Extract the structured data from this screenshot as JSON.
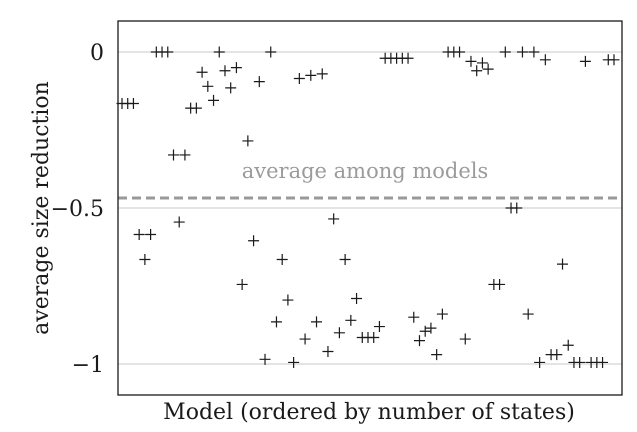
{
  "chart_data": {
    "type": "scatter",
    "xlabel": "Model (ordered by number of states)",
    "ylabel": "average size reduction",
    "ylim": [
      -1.1,
      0.1
    ],
    "yticks": [
      {
        "value": 0,
        "label": "0"
      },
      {
        "value": -0.5,
        "label": "−0.5"
      },
      {
        "value": -1,
        "label": "−1"
      }
    ],
    "grid": "horizontal",
    "marker": "+",
    "series": [
      {
        "points": [
          [
            1,
            -0.165
          ],
          [
            2,
            -0.165
          ],
          [
            3,
            -0.165
          ],
          [
            4,
            -0.585
          ],
          [
            5,
            -0.665
          ],
          [
            6,
            -0.585
          ],
          [
            7,
            0
          ],
          [
            8,
            0
          ],
          [
            9,
            0
          ],
          [
            10,
            -0.33
          ],
          [
            11,
            -0.545
          ],
          [
            12,
            -0.33
          ],
          [
            13,
            -0.18
          ],
          [
            14,
            -0.18
          ],
          [
            15,
            -0.065
          ],
          [
            16,
            -0.11
          ],
          [
            17,
            -0.155
          ],
          [
            18,
            0
          ],
          [
            19,
            -0.06
          ],
          [
            20,
            -0.115
          ],
          [
            21,
            -0.05
          ],
          [
            22,
            -0.745
          ],
          [
            23,
            -0.285
          ],
          [
            24,
            -0.605
          ],
          [
            25,
            -0.095
          ],
          [
            26,
            -0.985
          ],
          [
            27,
            0
          ],
          [
            28,
            -0.865
          ],
          [
            29,
            -0.665
          ],
          [
            30,
            -0.795
          ],
          [
            31,
            -0.995
          ],
          [
            32,
            -0.085
          ],
          [
            33,
            -0.92
          ],
          [
            34,
            -0.075
          ],
          [
            35,
            -0.865
          ],
          [
            36,
            -0.07
          ],
          [
            37,
            -0.96
          ],
          [
            38,
            -0.535
          ],
          [
            39,
            -0.9
          ],
          [
            40,
            -0.665
          ],
          [
            41,
            -0.86
          ],
          [
            42,
            -0.79
          ],
          [
            43,
            -0.915
          ],
          [
            44,
            -0.915
          ],
          [
            45,
            -0.915
          ],
          [
            46,
            -0.88
          ],
          [
            47,
            -0.02
          ],
          [
            48,
            -0.02
          ],
          [
            49,
            -0.02
          ],
          [
            50,
            -0.02
          ],
          [
            51,
            -0.02
          ],
          [
            52,
            -0.85
          ],
          [
            53,
            -0.925
          ],
          [
            54,
            -0.895
          ],
          [
            55,
            -0.885
          ],
          [
            56,
            -0.97
          ],
          [
            57,
            -0.84
          ],
          [
            58,
            0
          ],
          [
            59,
            0
          ],
          [
            60,
            0
          ],
          [
            61,
            -0.92
          ],
          [
            62,
            -0.03
          ],
          [
            63,
            -0.06
          ],
          [
            64,
            -0.035
          ],
          [
            65,
            -0.055
          ],
          [
            66,
            -0.745
          ],
          [
            67,
            -0.745
          ],
          [
            68,
            0
          ],
          [
            69,
            -0.5
          ],
          [
            70,
            -0.5
          ],
          [
            71,
            0
          ],
          [
            72,
            -0.84
          ],
          [
            73,
            0
          ],
          [
            74,
            -0.995
          ],
          [
            75,
            -0.025
          ],
          [
            76,
            -0.97
          ],
          [
            77,
            -0.97
          ],
          [
            78,
            -0.68
          ],
          [
            79,
            -0.94
          ],
          [
            80,
            -0.995
          ],
          [
            81,
            -0.995
          ],
          [
            82,
            -0.03
          ],
          [
            83,
            -0.995
          ],
          [
            84,
            -0.995
          ],
          [
            85,
            -0.995
          ],
          [
            86,
            -0.025
          ],
          [
            87,
            -0.025
          ]
        ]
      }
    ],
    "reference_line": {
      "value": -0.468,
      "style": "dashed",
      "color": "#999999",
      "label": "average among models"
    }
  }
}
